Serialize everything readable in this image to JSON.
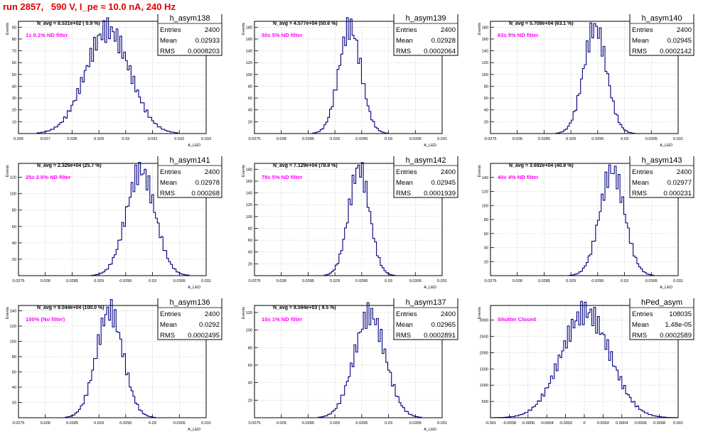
{
  "run_title": "run 2857,   590 V, I_pe ≈ 10.0 nA, 240 Hz",
  "colors": {
    "title": "#e00000",
    "histogram": "#000080",
    "annotation": "#ff00ff",
    "grid": "#aaaaaa"
  },
  "chart_data": [
    {
      "type": "bar",
      "hist_name": "h_asym138",
      "stats": {
        "entries_label": "Entries",
        "entries": "2400",
        "mean_label": "Mean",
        "mean": "0.02933",
        "rms_label": "RMS",
        "rms": "0.0008203"
      },
      "header": "N_avg = 8.531e+02 ( 0.9 %)",
      "annotation": "1± 0.1% ND filter",
      "ylabel": "Events",
      "xlabel": "A_LED",
      "xlim": [
        0.026,
        0.033
      ],
      "ylim": [
        0,
        95
      ],
      "xticks": [
        0.026,
        0.027,
        0.028,
        0.029,
        0.03,
        0.031,
        0.032,
        0.033
      ],
      "xtick_labels": [
        "0.026",
        "0.027",
        "0.028",
        "0.029",
        "0.03",
        "0.031",
        "0.032",
        "0.033"
      ],
      "yticks": [
        10,
        20,
        30,
        40,
        50,
        60,
        70,
        80,
        90
      ],
      "mean_value": 0.02933,
      "rms_value": 0.0008203,
      "peak": 88,
      "nbins": 100
    },
    {
      "type": "bar",
      "hist_name": "h_asym139",
      "stats": {
        "entries_label": "Entries",
        "entries": "2400",
        "mean_label": "Mean",
        "mean": "0.02928",
        "rms_label": "RMS",
        "rms": "0.0002064"
      },
      "header": "N_avg = 4.577e+04 (50.6 %)",
      "annotation": "50± 5% ND filter",
      "ylabel": "Events",
      "xlabel": "A_LED",
      "xlim": [
        0.0275,
        0.031
      ],
      "ylim": [
        0,
        190
      ],
      "xticks": [
        0.0275,
        0.028,
        0.0285,
        0.029,
        0.0295,
        0.03,
        0.0305,
        0.031
      ],
      "xtick_labels": [
        "0.0275",
        "0.028",
        "0.0285",
        "0.029",
        "0.0295",
        "0.03",
        "0.0305",
        "0.031"
      ],
      "yticks": [
        20,
        40,
        60,
        80,
        100,
        120,
        140,
        160,
        180
      ],
      "mean_value": 0.02928,
      "rms_value": 0.0002064,
      "peak": 180,
      "nbins": 100
    },
    {
      "type": "bar",
      "hist_name": "h_asym140",
      "stats": {
        "entries_label": "Entries",
        "entries": "2400",
        "mean_label": "Mean",
        "mean": "0.02945",
        "rms_label": "RMS",
        "rms": "0.0002142"
      },
      "header": "N_avg = 5.708e+04 (63.1 %)",
      "annotation": "63± 5% ND filter",
      "ylabel": "Events",
      "xlabel": "A_LED",
      "xlim": [
        0.0275,
        0.031
      ],
      "ylim": [
        0,
        190
      ],
      "xticks": [
        0.0275,
        0.028,
        0.0285,
        0.029,
        0.0295,
        0.03,
        0.0305,
        0.031
      ],
      "xtick_labels": [
        "0.0275",
        "0.028",
        "0.0285",
        "0.029",
        "0.0295",
        "0.03",
        "0.0305",
        "0.031"
      ],
      "yticks": [
        20,
        40,
        60,
        80,
        100,
        120,
        140,
        160,
        180
      ],
      "mean_value": 0.02945,
      "rms_value": 0.0002142,
      "peak": 180,
      "nbins": 100
    },
    {
      "type": "bar",
      "hist_name": "h_asym141",
      "stats": {
        "entries_label": "Entries",
        "entries": "2400",
        "mean_label": "Mean",
        "mean": "0.02978",
        "rms_label": "RMS",
        "rms": "0.000268"
      },
      "header": "N_avg = 2.326e+04 (25.7 %)",
      "annotation": "25± 2.5% ND filter",
      "ylabel": "Events",
      "xlabel": "A_LED",
      "xlim": [
        0.0275,
        0.031
      ],
      "ylim": [
        0,
        137
      ],
      "xticks": [
        0.0275,
        0.028,
        0.0285,
        0.029,
        0.0295,
        0.03,
        0.0305,
        0.031
      ],
      "xtick_labels": [
        "0.0275",
        "0.028",
        "0.0285",
        "0.029",
        "0.0295",
        "0.03",
        "0.0305",
        "0.031"
      ],
      "yticks": [
        20,
        40,
        60,
        80,
        100,
        120
      ],
      "mean_value": 0.02978,
      "rms_value": 0.000268,
      "peak": 128,
      "nbins": 100
    },
    {
      "type": "bar",
      "hist_name": "h_asym142",
      "stats": {
        "entries_label": "Entries",
        "entries": "2400",
        "mean_label": "Mean",
        "mean": "0.02945",
        "rms_label": "RMS",
        "rms": "0.0001939"
      },
      "header": "N_avg = 7.129e+04 (78.8 %)",
      "annotation": "79± 5% ND filter",
      "ylabel": "Events",
      "xlabel": "A_LED",
      "xlim": [
        0.0275,
        0.031
      ],
      "ylim": [
        0,
        190
      ],
      "xticks": [
        0.0275,
        0.028,
        0.0285,
        0.029,
        0.0295,
        0.03,
        0.0305,
        0.031
      ],
      "xtick_labels": [
        "0.0275",
        "0.028",
        "0.0285",
        "0.029",
        "0.0295",
        "0.03",
        "0.0305",
        "0.031"
      ],
      "yticks": [
        20,
        40,
        60,
        80,
        100,
        120,
        140,
        160,
        180
      ],
      "mean_value": 0.02945,
      "rms_value": 0.0001939,
      "peak": 182,
      "nbins": 100
    },
    {
      "type": "bar",
      "hist_name": "h_asym143",
      "stats": {
        "entries_label": "Entries",
        "entries": "2400",
        "mean_label": "Mean",
        "mean": "0.02977",
        "rms_label": "RMS",
        "rms": "0.000231"
      },
      "header": "N_avg = 3.692e+04 (40.8 %)",
      "annotation": "40± 4% ND filter",
      "ylabel": "Events",
      "xlabel": "A_LED",
      "xlim": [
        0.0275,
        0.031
      ],
      "ylim": [
        0,
        160
      ],
      "xticks": [
        0.0275,
        0.028,
        0.0285,
        0.029,
        0.0295,
        0.03,
        0.0305,
        0.031
      ],
      "xtick_labels": [
        "0.0275",
        "0.028",
        "0.0285",
        "0.029",
        "0.0295",
        "0.03",
        "0.0305",
        "0.031"
      ],
      "yticks": [
        20,
        40,
        60,
        80,
        100,
        120,
        140
      ],
      "mean_value": 0.02977,
      "rms_value": 0.000231,
      "peak": 150,
      "nbins": 100
    },
    {
      "type": "bar",
      "hist_name": "h_asym136",
      "stats": {
        "entries_label": "Entries",
        "entries": "2400",
        "mean_label": "Mean",
        "mean": "0.0292",
        "rms_label": "RMS",
        "rms": "0.0002495"
      },
      "header": "N_avg = 9.044e+04 (100.0 %)",
      "annotation": "100% (No filter)",
      "ylabel": "Events",
      "xlabel": "A_LED",
      "xlim": [
        0.0275,
        0.031
      ],
      "ylim": [
        0,
        147
      ],
      "xticks": [
        0.0275,
        0.028,
        0.0285,
        0.029,
        0.0295,
        0.03,
        0.0305,
        0.031
      ],
      "xtick_labels": [
        "0.0275",
        "0.028",
        "0.0285",
        "0.029",
        "0.0295",
        "0.03",
        "0.0305",
        "0.031"
      ],
      "yticks": [
        20,
        40,
        60,
        80,
        100,
        120,
        140
      ],
      "mean_value": 0.0292,
      "rms_value": 0.0002495,
      "peak": 140,
      "nbins": 100
    },
    {
      "type": "bar",
      "hist_name": "h_asym137",
      "stats": {
        "entries_label": "Entries",
        "entries": "2400",
        "mean_label": "Mean",
        "mean": "0.02965",
        "rms_label": "RMS",
        "rms": "0.0002891"
      },
      "header": "N_avg = 8.594e+03 ( 9.5 %)",
      "annotation": "10± 1% ND filter",
      "ylabel": "Events",
      "xlabel": "A_LED",
      "xlim": [
        0.0275,
        0.031
      ],
      "ylim": [
        0,
        128
      ],
      "xticks": [
        0.0275,
        0.028,
        0.0285,
        0.029,
        0.0295,
        0.03,
        0.0305,
        0.031
      ],
      "xtick_labels": [
        "0.0275",
        "0.028",
        "0.0285",
        "0.029",
        "0.0295",
        "0.03",
        "0.0305",
        "0.031"
      ],
      "yticks": [
        20,
        40,
        60,
        80,
        100,
        120
      ],
      "mean_value": 0.02965,
      "rms_value": 0.0002891,
      "peak": 118,
      "nbins": 100
    },
    {
      "type": "bar",
      "hist_name": "hPed_asym",
      "stats": {
        "entries_label": "Entries",
        "entries": "108035",
        "mean_label": "Mean",
        "mean": "1.48e-05",
        "rms_label": "RMS",
        "rms": "0.0002589"
      },
      "header": "",
      "annotation": "Shutter Closed",
      "ylabel": "Events",
      "xlabel": "",
      "xlim": [
        -0.001,
        0.001
      ],
      "ylim": [
        0,
        3450
      ],
      "xticks": [
        -0.001,
        -0.0008,
        -0.0006,
        -0.0004,
        -0.0002,
        0,
        0.0002,
        0.0004,
        0.0006,
        0.0008,
        0.001
      ],
      "xtick_labels": [
        "-0.001",
        "-0.0008",
        "-0.0006",
        "-0.0004",
        "-0.0002",
        "0",
        "0.0002",
        "0.0004",
        "0.0006",
        "0.0008",
        "0.001"
      ],
      "yticks": [
        500,
        1000,
        1500,
        2000,
        2500,
        3000
      ],
      "mean_value": 1.48e-05,
      "rms_value": 0.0002589,
      "peak": 3250,
      "nbins": 100
    }
  ]
}
